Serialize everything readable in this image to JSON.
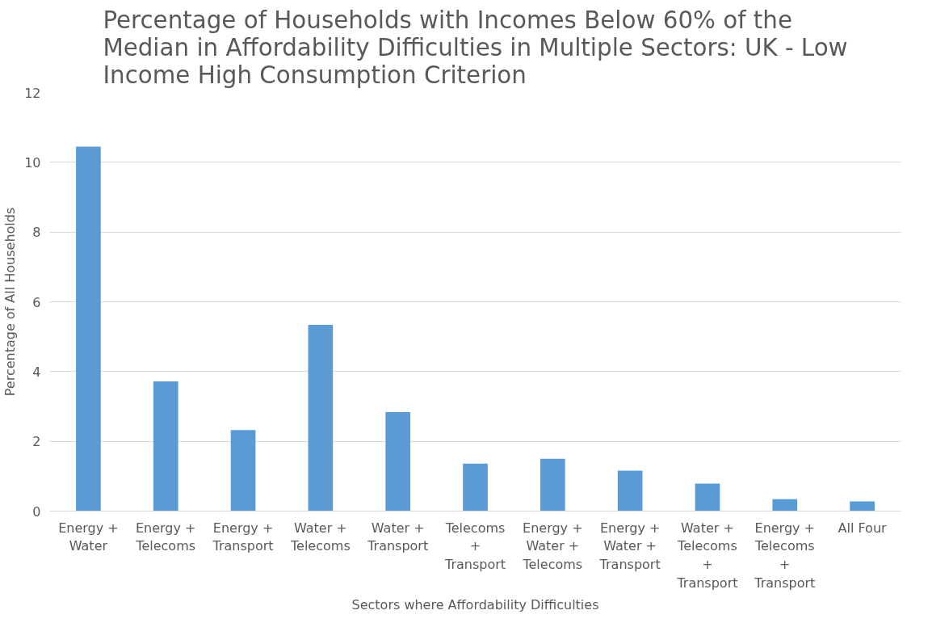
{
  "chart_data": {
    "type": "bar",
    "title": "Percentage of Households with Incomes Below 60% of the\nMedian in Affordability Difficulties in Multiple Sectors: UK - Low\nIncome High Consumption Criterion",
    "xlabel": "Sectors where Affordability Difficulties",
    "ylabel": "Percentage of All Households",
    "categories": [
      "Energy +\nWater",
      "Energy +\nTelecoms",
      "Energy +\nTransport",
      "Water +\nTelecoms",
      "Water +\nTransport",
      "Telecoms\n+\nTransport",
      "Energy +\nWater +\nTelecoms",
      "Energy +\nWater +\nTransport",
      "Water +\nTelecoms\n+\nTransport",
      "Energy +\nTelecoms\n+\nTransport",
      "All Four"
    ],
    "values": [
      10.45,
      3.72,
      2.32,
      5.34,
      2.84,
      1.36,
      1.5,
      1.16,
      0.79,
      0.34,
      0.28
    ],
    "color": "#5b9bd5",
    "ylim": [
      0,
      12
    ],
    "yticks": [
      0,
      2,
      4,
      6,
      8,
      10,
      12
    ],
    "grid": "y"
  }
}
